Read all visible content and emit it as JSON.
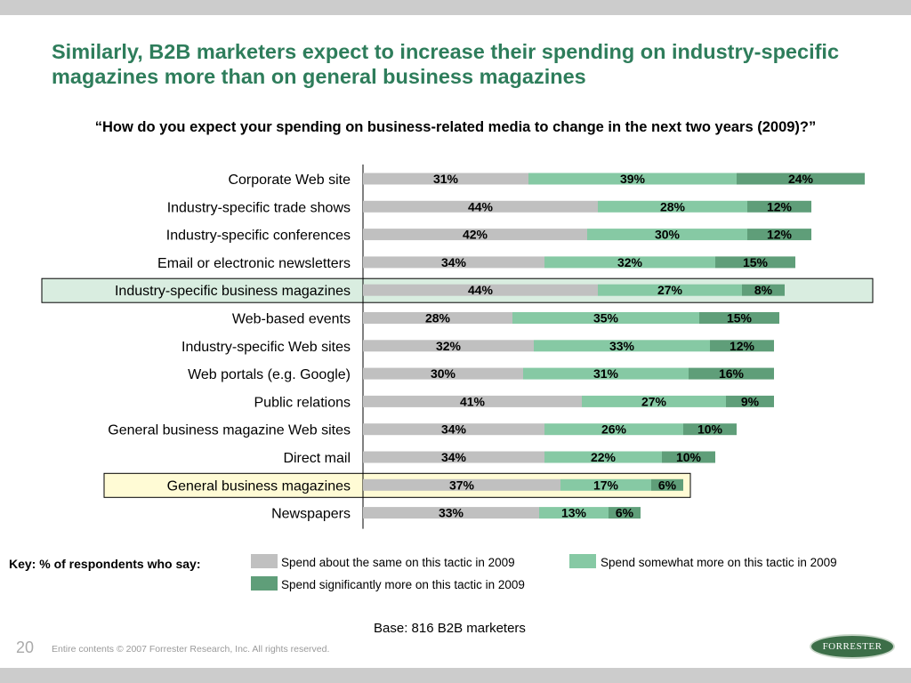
{
  "slide": {
    "title": "Similarly, B2B marketers expect to increase their spending on industry-specific magazines more than on general business magazines",
    "question": "“How do you expect your spending on business-related media to change in the next two years (2009)?”",
    "base": "Base:  816 B2B marketers",
    "page_number": "20",
    "copyright": "Entire contents © 2007  Forrester Research, Inc. All rights reserved.",
    "logo_text": "FORRESTER",
    "title_color": "#2e7d5b"
  },
  "key": {
    "title": "Key: % of respondents who say:",
    "items": [
      {
        "label": "Spend about the same on this tactic in 2009",
        "color": "#c0c0c0"
      },
      {
        "label": "Spend somewhat more on this tactic in 2009",
        "color": "#86c9a4"
      },
      {
        "label": "Spend significantly more on this tactic in 2009",
        "color": "#5f9e79"
      }
    ]
  },
  "chart_data": {
    "type": "bar",
    "orientation": "horizontal",
    "stacked": true,
    "categories": [
      "Corporate Web site",
      "Industry-specific trade shows",
      "Industry-specific conferences",
      "Email or electronic newsletters",
      "Industry-specific business magazines",
      "Web-based events",
      "Industry-specific Web sites",
      "Web portals (e.g. Google)",
      "Public relations",
      "General business magazine Web sites",
      "Direct mail",
      "General business magazines",
      "Newspapers"
    ],
    "series": [
      {
        "name": "Spend about the same on this tactic in 2009",
        "color": "#c0c0c0",
        "values": [
          31,
          44,
          42,
          34,
          44,
          28,
          32,
          30,
          41,
          34,
          34,
          37,
          33
        ]
      },
      {
        "name": "Spend somewhat more on this tactic in 2009",
        "color": "#86c9a4",
        "values": [
          39,
          28,
          30,
          32,
          27,
          35,
          33,
          31,
          27,
          26,
          22,
          17,
          13
        ]
      },
      {
        "name": "Spend significantly more on this tactic in 2009",
        "color": "#5f9e79",
        "values": [
          24,
          12,
          12,
          15,
          8,
          15,
          12,
          16,
          9,
          10,
          10,
          6,
          6
        ]
      }
    ],
    "value_suffix": "%",
    "highlights": [
      {
        "category": "Industry-specific business magazines",
        "color": "#d9ede0"
      },
      {
        "category": "General business magazines",
        "color": "#fffbd5"
      }
    ],
    "xlim": [
      0,
      100
    ],
    "grid": false,
    "legend": "bottom"
  }
}
